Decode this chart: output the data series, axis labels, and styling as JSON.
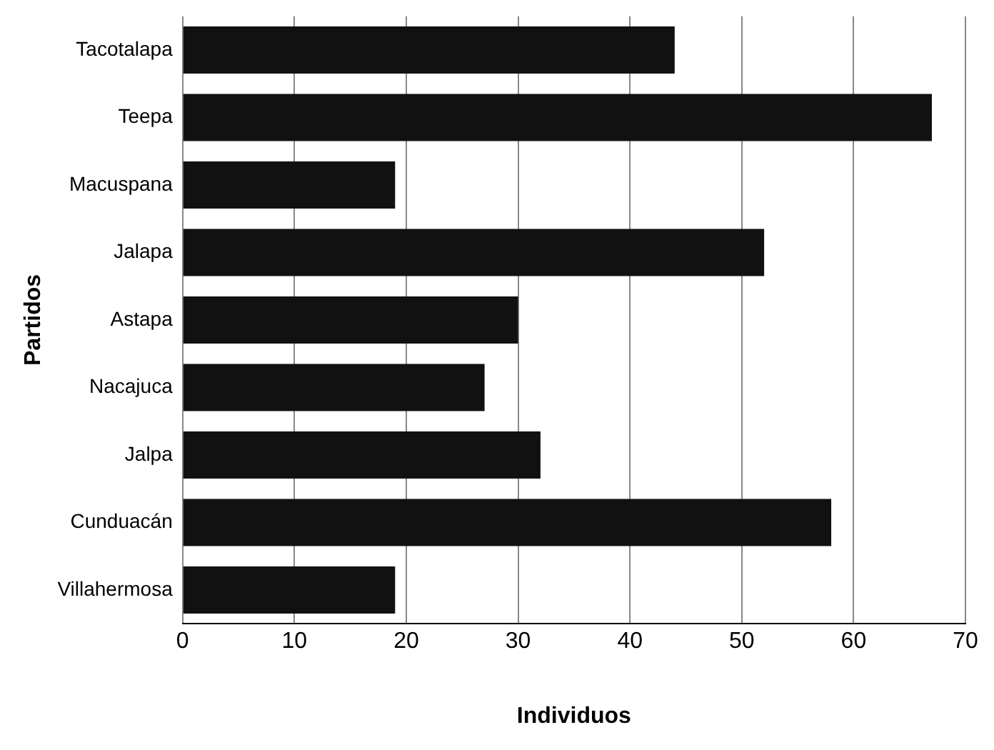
{
  "chart_data": {
    "type": "bar",
    "orientation": "horizontal",
    "xlabel": "Individuos",
    "ylabel": "Partidos",
    "categories": [
      "Tacotalapa",
      "Teepa",
      "Macuspana",
      "Jalapa",
      "Astapa",
      "Nacajuca",
      "Jalpa",
      "Cunduacán",
      "Villahermosa"
    ],
    "values": [
      44,
      67,
      19,
      52,
      30,
      27,
      32,
      58,
      19
    ],
    "color": "#111111",
    "xlim": [
      0,
      70
    ],
    "xticks": [
      0,
      10,
      20,
      30,
      40,
      50,
      60,
      70
    ],
    "grid": "x",
    "legend": false
  }
}
